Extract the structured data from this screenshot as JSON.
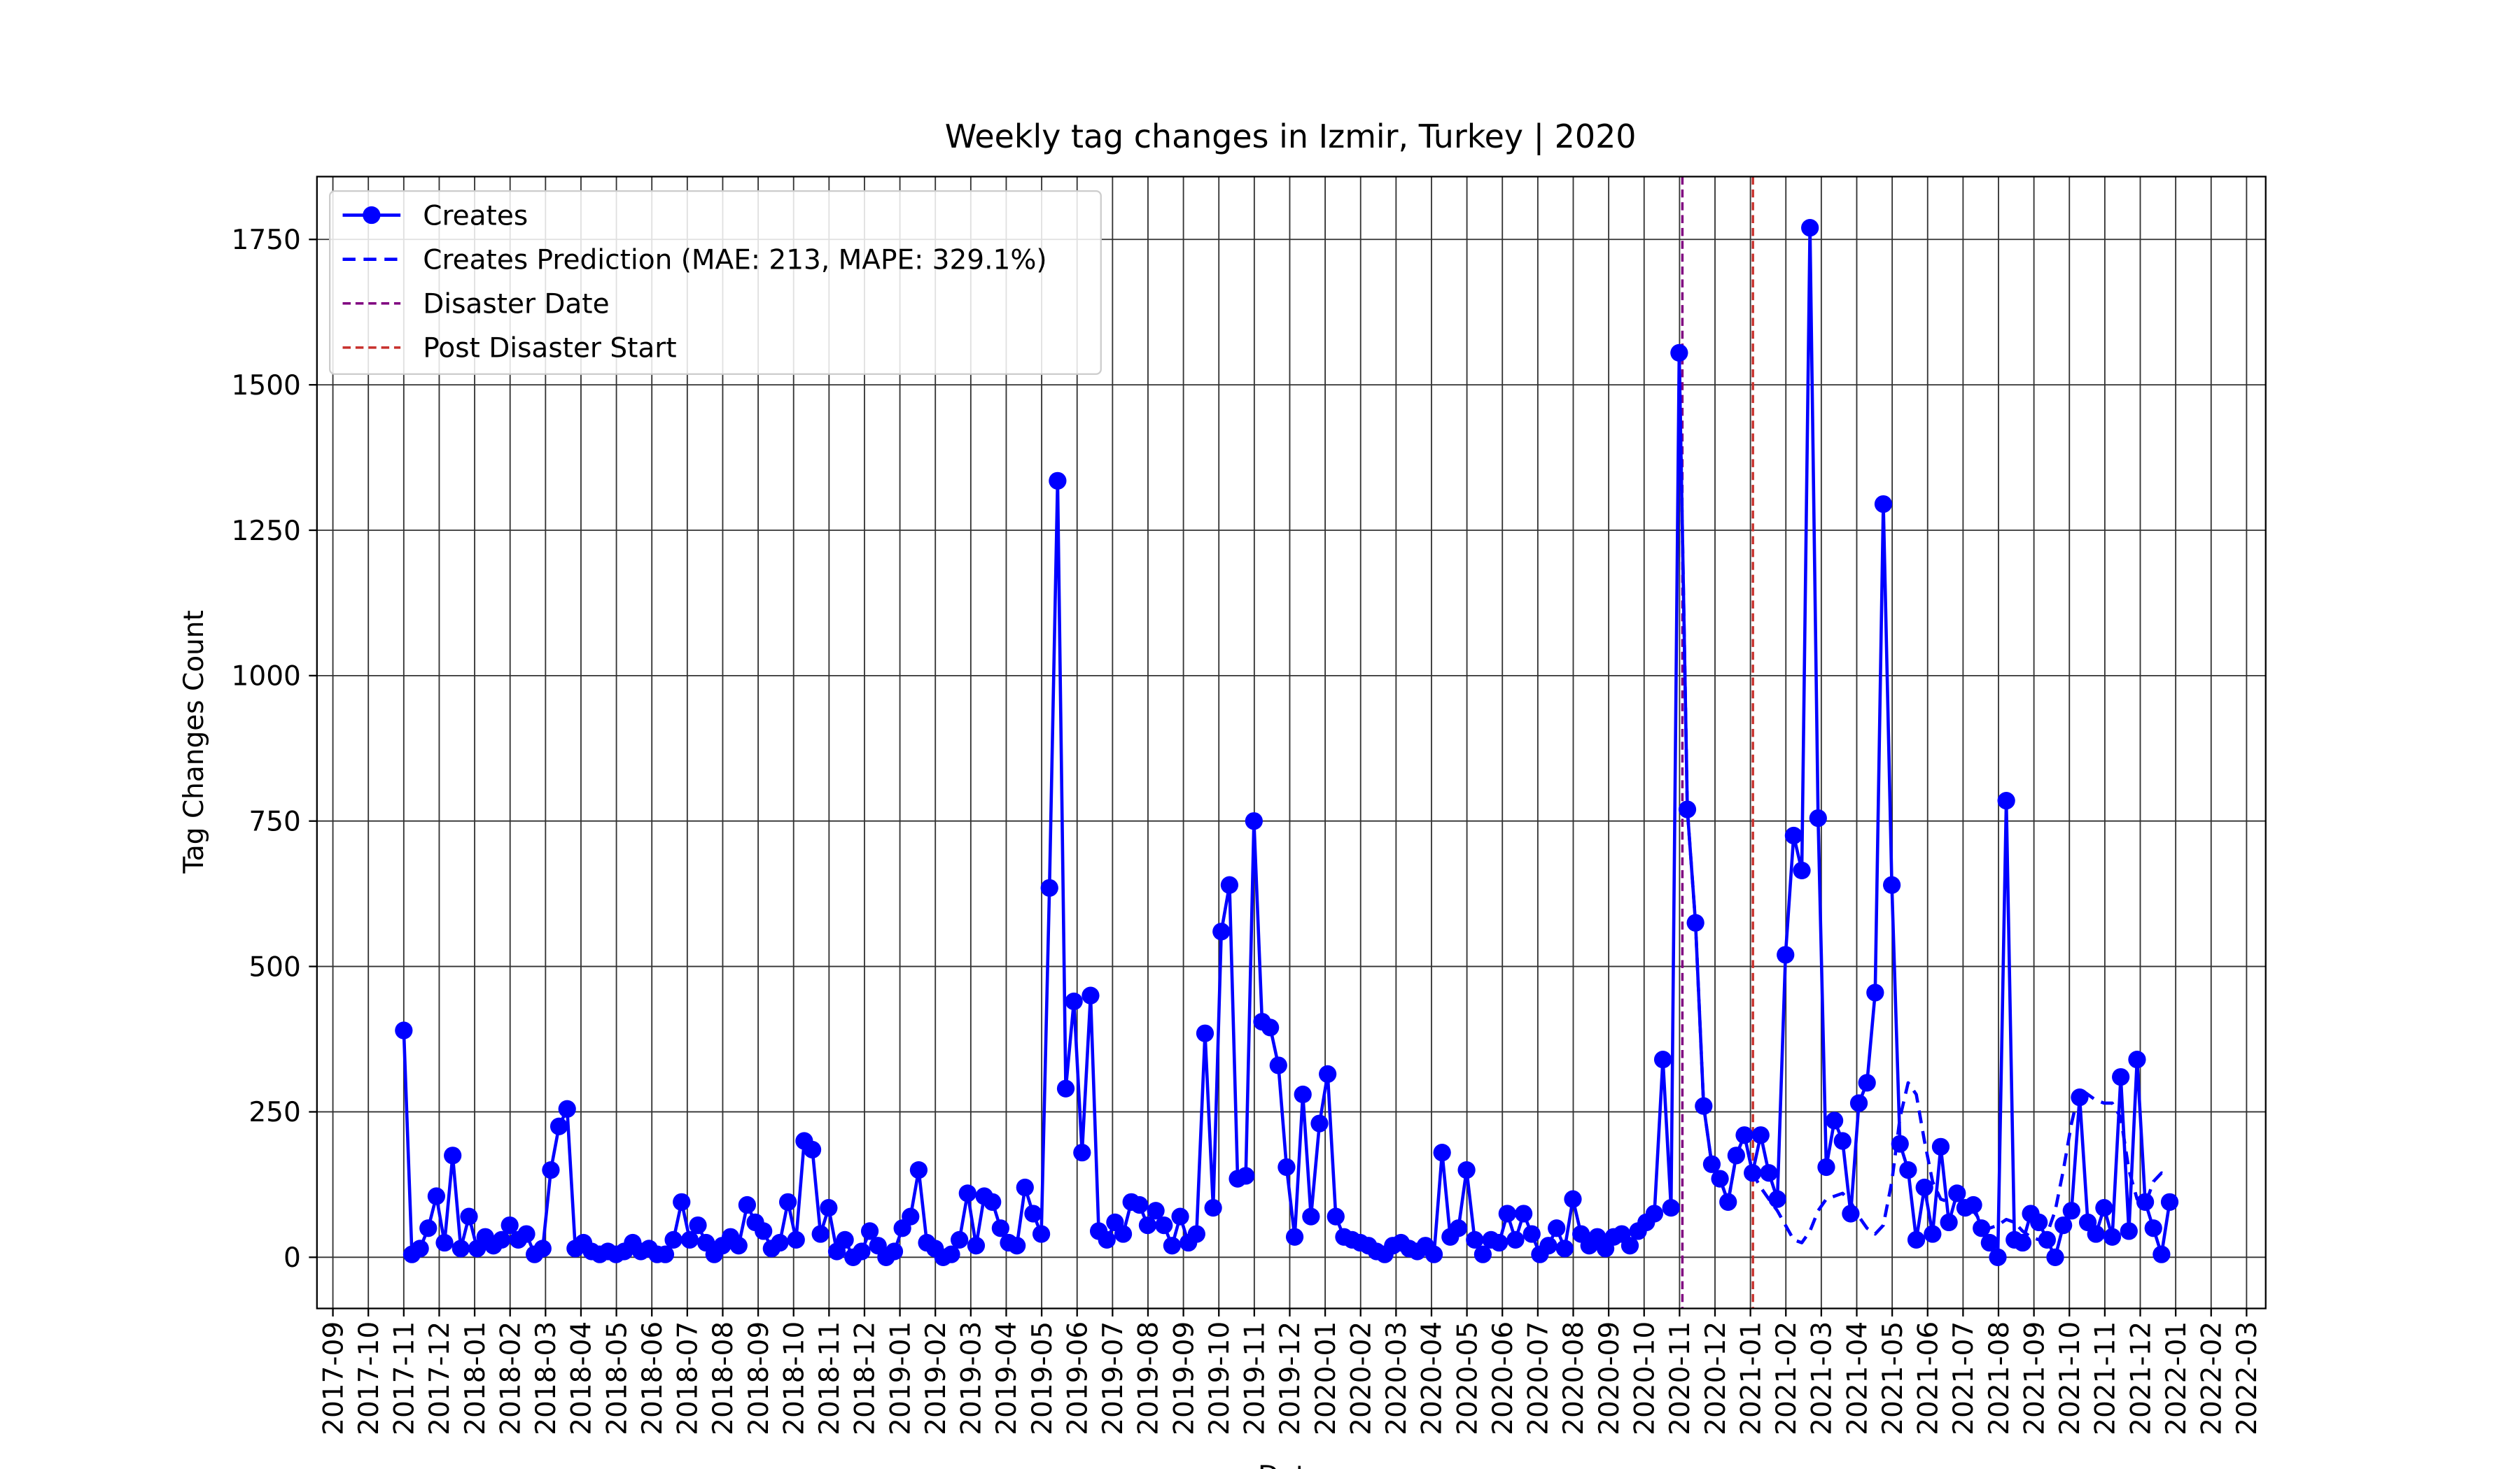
{
  "chart_data": {
    "type": "line",
    "title": "Weekly tag changes in Izmir, Turkey | 2020",
    "x_label": "Date",
    "y_label": "Tag Changes Count",
    "grid": true,
    "legend": "upper left",
    "xlim": [
      -0.45,
      54.54
    ],
    "ylim": [
      -88,
      1858
    ],
    "yticks": [
      0,
      250,
      500,
      750,
      1000,
      1250,
      1500,
      1750
    ],
    "xticks": [
      {
        "value": 0,
        "label": "2017-09"
      },
      {
        "value": 1,
        "label": "2017-10"
      },
      {
        "value": 2,
        "label": "2017-11"
      },
      {
        "value": 3,
        "label": "2017-12"
      },
      {
        "value": 4,
        "label": "2018-01"
      },
      {
        "value": 5,
        "label": "2018-02"
      },
      {
        "value": 6,
        "label": "2018-03"
      },
      {
        "value": 7,
        "label": "2018-04"
      },
      {
        "value": 8,
        "label": "2018-05"
      },
      {
        "value": 9,
        "label": "2018-06"
      },
      {
        "value": 10,
        "label": "2018-07"
      },
      {
        "value": 11,
        "label": "2018-08"
      },
      {
        "value": 12,
        "label": "2018-09"
      },
      {
        "value": 13,
        "label": "2018-10"
      },
      {
        "value": 14,
        "label": "2018-11"
      },
      {
        "value": 15,
        "label": "2018-12"
      },
      {
        "value": 16,
        "label": "2019-01"
      },
      {
        "value": 17,
        "label": "2019-02"
      },
      {
        "value": 18,
        "label": "2019-03"
      },
      {
        "value": 19,
        "label": "2019-04"
      },
      {
        "value": 20,
        "label": "2019-05"
      },
      {
        "value": 21,
        "label": "2019-06"
      },
      {
        "value": 22,
        "label": "2019-07"
      },
      {
        "value": 23,
        "label": "2019-08"
      },
      {
        "value": 24,
        "label": "2019-09"
      },
      {
        "value": 25,
        "label": "2019-10"
      },
      {
        "value": 26,
        "label": "2019-11"
      },
      {
        "value": 27,
        "label": "2019-12"
      },
      {
        "value": 28,
        "label": "2020-01"
      },
      {
        "value": 29,
        "label": "2020-02"
      },
      {
        "value": 30,
        "label": "2020-03"
      },
      {
        "value": 31,
        "label": "2020-04"
      },
      {
        "value": 32,
        "label": "2020-05"
      },
      {
        "value": 33,
        "label": "2020-06"
      },
      {
        "value": 34,
        "label": "2020-07"
      },
      {
        "value": 35,
        "label": "2020-08"
      },
      {
        "value": 36,
        "label": "2020-09"
      },
      {
        "value": 37,
        "label": "2020-10"
      },
      {
        "value": 38,
        "label": "2020-11"
      },
      {
        "value": 39,
        "label": "2020-12"
      },
      {
        "value": 40,
        "label": "2021-01"
      },
      {
        "value": 41,
        "label": "2021-02"
      },
      {
        "value": 42,
        "label": "2021-03"
      },
      {
        "value": 43,
        "label": "2021-04"
      },
      {
        "value": 44,
        "label": "2021-05"
      },
      {
        "value": 45,
        "label": "2021-06"
      },
      {
        "value": 46,
        "label": "2021-07"
      },
      {
        "value": 47,
        "label": "2021-08"
      },
      {
        "value": 48,
        "label": "2021-09"
      },
      {
        "value": 49,
        "label": "2021-10"
      },
      {
        "value": 50,
        "label": "2021-11"
      },
      {
        "value": 51,
        "label": "2021-12"
      },
      {
        "value": 52,
        "label": "2022-01"
      },
      {
        "value": 53,
        "label": "2022-02"
      },
      {
        "value": 54,
        "label": "2022-03"
      }
    ],
    "x": [
      2.0,
      2.23,
      2.46,
      2.69,
      2.92,
      3.15,
      3.38,
      3.61,
      3.84,
      4.07,
      4.3,
      4.53,
      4.76,
      4.99,
      5.23,
      5.46,
      5.69,
      5.92,
      6.15,
      6.38,
      6.61,
      6.84,
      7.07,
      7.3,
      7.53,
      7.76,
      7.99,
      8.22,
      8.46,
      8.69,
      8.92,
      9.15,
      9.38,
      9.61,
      9.84,
      10.07,
      10.3,
      10.53,
      10.76,
      10.99,
      11.22,
      11.45,
      11.69,
      11.92,
      12.15,
      12.38,
      12.61,
      12.84,
      13.07,
      13.3,
      13.53,
      13.76,
      13.99,
      14.22,
      14.45,
      14.68,
      14.92,
      15.15,
      15.38,
      15.61,
      15.84,
      16.07,
      16.3,
      16.53,
      16.76,
      16.99,
      17.22,
      17.45,
      17.68,
      17.91,
      18.15,
      18.38,
      18.61,
      18.84,
      19.07,
      19.3,
      19.53,
      19.76,
      19.99,
      20.22,
      20.45,
      20.68,
      20.91,
      21.14,
      21.38,
      21.61,
      21.84,
      22.07,
      22.3,
      22.53,
      22.76,
      22.99,
      23.22,
      23.45,
      23.68,
      23.91,
      24.14,
      24.37,
      24.61,
      24.84,
      25.07,
      25.3,
      25.53,
      25.76,
      25.99,
      26.22,
      26.45,
      26.68,
      26.91,
      27.14,
      27.37,
      27.6,
      27.84,
      28.07,
      28.3,
      28.53,
      28.76,
      28.99,
      29.22,
      29.45,
      29.68,
      29.91,
      30.14,
      30.37,
      30.6,
      30.83,
      31.07,
      31.3,
      31.53,
      31.76,
      31.99,
      32.22,
      32.45,
      32.68,
      32.91,
      33.14,
      33.37,
      33.6,
      33.83,
      34.06,
      34.3,
      34.53,
      34.76,
      34.99,
      35.22,
      35.45,
      35.68,
      35.91,
      36.14,
      36.37,
      36.6,
      36.83,
      37.06,
      37.29,
      37.53,
      37.76,
      37.99,
      38.22,
      38.45,
      38.68,
      38.91,
      39.14,
      39.37,
      39.6,
      39.83,
      40.06,
      40.29,
      40.52,
      40.76,
      40.99,
      41.22,
      41.45,
      41.68,
      41.91,
      42.14,
      42.37,
      42.6,
      42.83,
      43.06,
      43.29,
      43.52,
      43.75,
      43.99,
      44.22,
      44.45,
      44.68,
      44.91,
      45.14,
      45.37,
      45.6,
      45.83,
      46.06,
      46.29,
      46.52,
      46.75,
      46.98,
      47.22,
      47.45,
      47.68,
      47.91,
      48.14,
      48.37,
      48.6,
      48.83,
      49.06,
      49.29,
      49.52,
      49.75,
      49.98,
      50.21,
      50.45,
      50.68,
      50.91,
      51.14,
      51.37,
      51.6,
      51.83
    ],
    "series": [
      {
        "name": "Creates",
        "color": "#0000ff",
        "style": "solid",
        "marker": true,
        "values": [
          390,
          5,
          15,
          50,
          105,
          25,
          175,
          15,
          70,
          15,
          35,
          20,
          30,
          55,
          30,
          40,
          5,
          15,
          150,
          225,
          255,
          15,
          25,
          10,
          5,
          10,
          5,
          10,
          25,
          10,
          15,
          5,
          5,
          30,
          95,
          30,
          55,
          25,
          5,
          20,
          35,
          20,
          90,
          60,
          45,
          15,
          25,
          95,
          30,
          200,
          185,
          40,
          85,
          10,
          30,
          0,
          10,
          45,
          20,
          0,
          10,
          50,
          70,
          150,
          25,
          15,
          0,
          5,
          30,
          110,
          20,
          105,
          95,
          50,
          25,
          20,
          120,
          75,
          40,
          635,
          1335,
          290,
          440,
          180,
          450,
          45,
          30,
          60,
          40,
          95,
          90,
          55,
          80,
          55,
          20,
          70,
          25,
          40,
          385,
          85,
          560,
          640,
          135,
          140,
          750,
          405,
          395,
          330,
          155,
          35,
          280,
          70,
          230,
          315,
          70,
          35,
          30,
          25,
          20,
          10,
          5,
          20,
          25,
          15,
          10,
          20,
          5,
          180,
          35,
          50,
          150,
          30,
          5,
          30,
          25,
          75,
          30,
          75,
          40,
          5,
          20,
          50,
          15,
          100,
          40,
          20,
          35,
          15,
          35,
          40,
          20,
          45,
          60,
          75,
          340,
          85,
          1555,
          770,
          575,
          260,
          160,
          135,
          95,
          175,
          210,
          145,
          210,
          145,
          100,
          520,
          725,
          665,
          1770,
          755,
          155,
          235,
          200,
          75,
          265,
          300,
          455,
          1295,
          640,
          195,
          150,
          30,
          120,
          40,
          190,
          60,
          110,
          85,
          90,
          50,
          25,
          0,
          785,
          30,
          25,
          75,
          60,
          30,
          0,
          55,
          80,
          275,
          60,
          40,
          85,
          35,
          310,
          45,
          340,
          95,
          50,
          5,
          95
        ]
      },
      {
        "name": "Creates Prediction (MAE: 213, MAPE: 329.1%)",
        "color": "#0000ff",
        "style": "dashed",
        "marker": false,
        "values": [
          null,
          null,
          null,
          null,
          null,
          null,
          null,
          null,
          null,
          null,
          null,
          null,
          null,
          null,
          null,
          null,
          null,
          null,
          null,
          null,
          null,
          null,
          null,
          null,
          null,
          null,
          null,
          null,
          null,
          null,
          null,
          null,
          null,
          null,
          null,
          null,
          null,
          null,
          null,
          null,
          null,
          null,
          null,
          null,
          null,
          null,
          null,
          null,
          null,
          null,
          null,
          null,
          null,
          null,
          null,
          null,
          null,
          null,
          null,
          null,
          null,
          null,
          null,
          null,
          null,
          null,
          null,
          null,
          null,
          null,
          null,
          null,
          null,
          null,
          null,
          null,
          null,
          null,
          null,
          null,
          null,
          null,
          null,
          null,
          null,
          null,
          null,
          null,
          null,
          null,
          null,
          null,
          null,
          null,
          null,
          null,
          null,
          null,
          null,
          null,
          null,
          null,
          null,
          null,
          null,
          null,
          null,
          null,
          null,
          null,
          null,
          null,
          null,
          null,
          null,
          null,
          null,
          null,
          null,
          null,
          null,
          null,
          null,
          null,
          null,
          null,
          null,
          null,
          null,
          null,
          null,
          null,
          null,
          null,
          null,
          null,
          null,
          null,
          null,
          null,
          null,
          null,
          null,
          null,
          null,
          null,
          null,
          null,
          null,
          null,
          null,
          null,
          null,
          null,
          null,
          null,
          1555,
          770,
          575,
          260,
          160,
          135,
          95,
          175,
          210,
          145,
          120,
          100,
          80,
          55,
          30,
          25,
          45,
          80,
          100,
          105,
          110,
          95,
          70,
          50,
          40,
          55,
          130,
          240,
          300,
          280,
          200,
          130,
          100,
          95,
          100,
          95,
          80,
          60,
          50,
          55,
          65,
          60,
          45,
          35,
          30,
          40,
          80,
          150,
          230,
          290,
          280,
          270,
          265,
          265,
          240,
          150,
          100,
          90,
          130,
          145,
          140
        ]
      }
    ],
    "vlines": [
      {
        "name": "Disaster Date",
        "x": 38.08,
        "color": "#800080"
      },
      {
        "name": "Post Disaster Start",
        "x": 40.07,
        "color": "#c8302c"
      }
    ]
  }
}
